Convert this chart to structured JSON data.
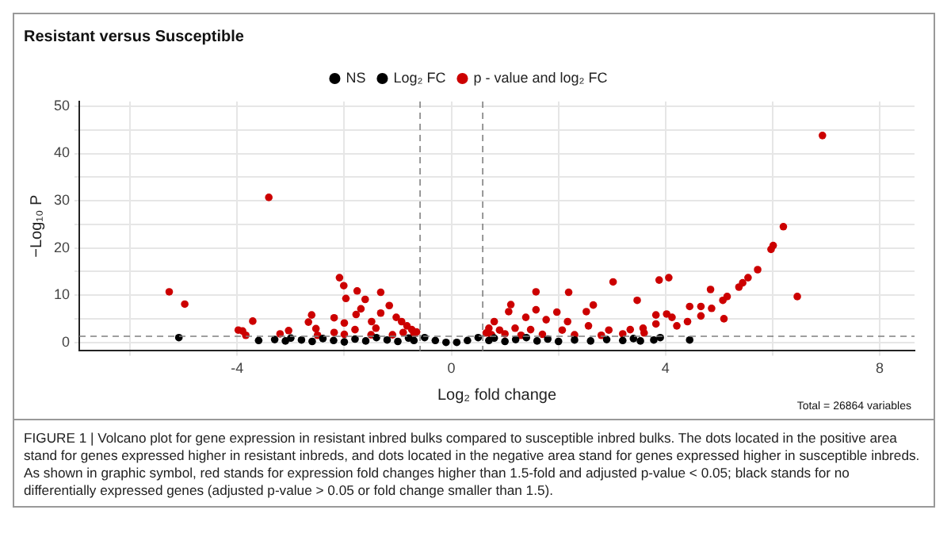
{
  "chart_data": {
    "type": "scatter",
    "title": "Resistant versus Susceptible",
    "xlabel": "Log₂ fold change",
    "ylabel": "−Log₁₀ P",
    "legend": "top",
    "grid": true,
    "marker": "circle",
    "xlim": [
      -6.95,
      8.65
    ],
    "xticks": [
      {
        "value": -6,
        "label": null
      },
      -4,
      {
        "value": -2,
        "label": null
      },
      0,
      {
        "value": 2,
        "label": null
      },
      4,
      {
        "value": 6,
        "label": null
      },
      8
    ],
    "ylim": [
      -1.8,
      51
    ],
    "yticks": [
      0,
      {
        "value": 5,
        "label": null
      },
      10,
      {
        "value": 15,
        "label": null
      },
      20,
      {
        "value": 25,
        "label": null
      },
      30,
      {
        "value": 35,
        "label": null
      },
      40,
      {
        "value": 45,
        "label": null
      },
      50
    ],
    "ref_lines": [
      {
        "axis": "x",
        "value": -0.585,
        "color": "#808080",
        "line_style": "dashed"
      },
      {
        "axis": "x",
        "value": 0.585,
        "color": "#808080",
        "line_style": "dashed"
      },
      {
        "axis": "y",
        "value": 1.3,
        "color": "#808080",
        "line_style": "dashed"
      }
    ],
    "series": [
      {
        "name": "NS",
        "color": "#000000",
        "x": [
          -0.5,
          -0.3,
          -0.1,
          0.1,
          0.3,
          0.5
        ],
        "values": [
          1.0,
          0.4,
          0,
          0,
          0.4,
          1.0
        ]
      },
      {
        "name": "Log₂ FC",
        "color": "#000000",
        "x": [
          -5.09,
          -3.6,
          -3.3,
          -3.1,
          -3.0,
          -2.8,
          -2.6,
          -2.4,
          -2.2,
          -2.0,
          -1.8,
          -1.6,
          -1.4,
          -1.2,
          -1.0,
          -0.8,
          -0.7,
          0.7,
          0.8,
          1.0,
          1.2,
          1.4,
          1.6,
          1.8,
          2.0,
          2.3,
          2.6,
          2.9,
          3.2,
          3.4,
          3.53,
          3.78,
          3.9,
          4.45
        ],
        "values": [
          1.0,
          0.4,
          0.6,
          0.3,
          0.9,
          0.5,
          0.2,
          0.8,
          0.4,
          0.1,
          0.7,
          0.3,
          1.0,
          0.5,
          0.2,
          0.9,
          0.4,
          0.4,
          0.9,
          0.2,
          0.6,
          1.0,
          0.3,
          0.7,
          0.2,
          0.5,
          0.3,
          0.6,
          0.4,
          0.8,
          0.3,
          0.5,
          1.0,
          0.5
        ]
      },
      {
        "name": "p - value and log₂ FC",
        "color": "#cc0000",
        "x": [
          -5.27,
          -4.98,
          -3.41,
          -3.71,
          -3.98,
          -3.9,
          -3.84,
          -2.09,
          -2.01,
          -1.76,
          -1.97,
          -1.61,
          -1.32,
          -1.16,
          -1.69,
          -1.78,
          -2.61,
          -2.19,
          -2.0,
          -2.67,
          -2.53,
          -3.04,
          -1.49,
          -1.32,
          -1.03,
          -0.83,
          -0.93,
          -1.41,
          -1.8,
          -0.74,
          -2.19,
          -0.7,
          -0.9,
          -1.1,
          -0.65,
          -1.5,
          -2.0,
          -2.5,
          -3.2,
          6.93,
          6.2,
          6.01,
          5.97,
          5.72,
          5.54,
          5.44,
          5.37,
          6.46,
          4.84,
          5.15,
          5.07,
          4.86,
          4.66,
          4.45,
          4.66,
          5.09,
          4.06,
          3.88,
          3.02,
          3.47,
          2.65,
          2.52,
          2.19,
          1.58,
          1.11,
          1.07,
          1.58,
          1.97,
          4.02,
          3.82,
          4.12,
          3.82,
          3.58,
          3.34,
          2.94,
          2.56,
          2.17,
          1.77,
          1.39,
          0.8,
          0.7,
          0.9,
          1.19,
          1.48,
          2.07,
          4.21,
          4.41,
          0.65,
          0.75,
          1.0,
          1.3,
          1.7,
          2.3,
          2.8,
          3.2,
          3.6
        ],
        "values": [
          10.7,
          8.1,
          30.7,
          4.5,
          2.6,
          2.4,
          1.5,
          13.7,
          12.0,
          10.9,
          9.3,
          9.1,
          10.6,
          7.8,
          7.1,
          5.9,
          5.8,
          5.2,
          4.1,
          4.3,
          2.9,
          2.5,
          4.4,
          6.2,
          5.3,
          3.5,
          4.4,
          3.0,
          2.7,
          2.7,
          2.1,
          1.8,
          2.1,
          1.6,
          2.2,
          1.6,
          1.7,
          1.5,
          1.8,
          43.8,
          24.5,
          20.5,
          19.7,
          15.4,
          13.7,
          12.6,
          11.7,
          9.7,
          11.2,
          9.7,
          8.9,
          7.2,
          7.6,
          7.6,
          5.6,
          5.0,
          13.7,
          13.2,
          12.8,
          8.9,
          7.9,
          6.5,
          10.6,
          10.7,
          8.0,
          6.5,
          6.9,
          6.4,
          6.0,
          5.8,
          5.3,
          3.9,
          3.0,
          2.7,
          2.6,
          3.5,
          4.4,
          4.8,
          5.3,
          4.4,
          3.0,
          2.6,
          3.0,
          2.7,
          2.6,
          3.5,
          4.4,
          2.0,
          1.6,
          1.8,
          1.5,
          1.7,
          1.6,
          1.5,
          1.8,
          2.0
        ]
      }
    ],
    "annotations": [
      "Total = 26864 variables",
      "FIGURE 1 | Volcano plot for gene expression in resistant inbred bulks compared to susceptible inbred bulks. The dots located in the positive area stand for genes expressed higher in resistant inbreds, and dots located in the negative area stand for genes expressed higher in susceptible inbreds. As shown in graphic symbol, red stands for expression fold changes higher than 1.5-fold and adjusted p-value < 0.05; black stands for no differentially expressed genes (adjusted p-value > 0.05 or fold change smaller than 1.5)."
    ]
  }
}
